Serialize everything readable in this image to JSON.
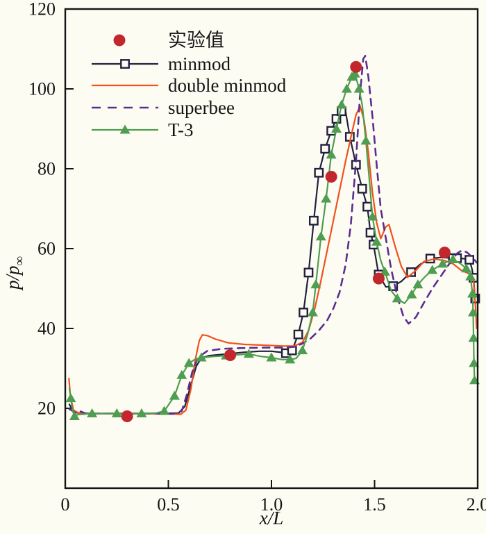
{
  "chart_data": {
    "type": "line",
    "title": "",
    "xlabel": "x/L",
    "ylabel": "p/p∞",
    "xlim": [
      0,
      2
    ],
    "ylim": [
      0,
      120
    ],
    "xticks": [
      {
        "v": 0,
        "label": "0"
      },
      {
        "v": 0.5,
        "label": "0.5"
      },
      {
        "v": 1.0,
        "label": "1.0"
      },
      {
        "v": 1.5,
        "label": "1.5"
      },
      {
        "v": 2.0,
        "label": "2.0"
      }
    ],
    "yticks": [
      {
        "v": 20,
        "label": "20"
      },
      {
        "v": 40,
        "label": "40"
      },
      {
        "v": 60,
        "label": "60"
      },
      {
        "v": 80,
        "label": "80"
      },
      {
        "v": 100,
        "label": "100"
      },
      {
        "v": 120,
        "label": "120"
      }
    ],
    "grid": false,
    "legend_position": "upper-left",
    "frame_color": "#141414",
    "background": "#fdfcf3",
    "series": [
      {
        "name": "实验值",
        "kind": "scatter",
        "marker": "circle",
        "color": "#c1272d",
        "points": [
          [
            0.3,
            18
          ],
          [
            0.8,
            33.3
          ],
          [
            1.29,
            78
          ],
          [
            1.41,
            105.5
          ],
          [
            1.52,
            52.5
          ],
          [
            1.84,
            59
          ]
        ]
      },
      {
        "name": "minmod",
        "kind": "line",
        "marker": "open-square",
        "color": "#21213f",
        "width": 2.2,
        "points": [
          [
            0.02,
            21
          ],
          [
            0.04,
            19
          ],
          [
            0.07,
            18.8
          ],
          [
            0.15,
            18.7
          ],
          [
            0.3,
            18.7
          ],
          [
            0.45,
            18.7
          ],
          [
            0.55,
            18.8
          ],
          [
            0.58,
            20.5
          ],
          [
            0.61,
            26
          ],
          [
            0.635,
            30.5
          ],
          [
            0.66,
            32.6
          ],
          [
            0.7,
            33.2
          ],
          [
            0.78,
            33.6
          ],
          [
            0.86,
            34.0
          ],
          [
            0.94,
            34.3
          ],
          [
            1.0,
            34.3
          ],
          [
            1.05,
            34.0
          ],
          [
            1.07,
            33.8
          ],
          [
            1.1,
            34.5
          ],
          [
            1.13,
            38.5
          ],
          [
            1.155,
            44
          ],
          [
            1.18,
            54
          ],
          [
            1.205,
            67
          ],
          [
            1.23,
            79
          ],
          [
            1.26,
            85
          ],
          [
            1.29,
            89.5
          ],
          [
            1.315,
            92.5
          ],
          [
            1.34,
            94.4
          ],
          [
            1.36,
            94.2
          ],
          [
            1.38,
            88
          ],
          [
            1.41,
            81
          ],
          [
            1.44,
            75
          ],
          [
            1.465,
            70.5
          ],
          [
            1.48,
            64
          ],
          [
            1.495,
            61
          ],
          [
            1.52,
            53.5
          ],
          [
            1.555,
            50.4
          ],
          [
            1.59,
            50.6
          ],
          [
            1.63,
            51.8
          ],
          [
            1.677,
            54.1
          ],
          [
            1.72,
            56
          ],
          [
            1.77,
            57.5
          ],
          [
            1.82,
            57.8
          ],
          [
            1.88,
            57.6
          ],
          [
            1.93,
            57.5
          ],
          [
            1.96,
            57.2
          ],
          [
            1.972,
            55
          ],
          [
            1.98,
            52.7
          ],
          [
            1.985,
            49
          ],
          [
            1.988,
            47.5
          ]
        ],
        "marker_points": [
          [
            1.07,
            33.8
          ],
          [
            1.1,
            34.5
          ],
          [
            1.13,
            38.5
          ],
          [
            1.155,
            44
          ],
          [
            1.18,
            54
          ],
          [
            1.205,
            67
          ],
          [
            1.23,
            79
          ],
          [
            1.26,
            85
          ],
          [
            1.29,
            89.5
          ],
          [
            1.315,
            92.5
          ],
          [
            1.34,
            94.4
          ],
          [
            1.38,
            88
          ],
          [
            1.41,
            81
          ],
          [
            1.44,
            75
          ],
          [
            1.465,
            70.5
          ],
          [
            1.48,
            64
          ],
          [
            1.495,
            61
          ],
          [
            1.52,
            53.5
          ],
          [
            1.59,
            50.6
          ],
          [
            1.677,
            54.1
          ],
          [
            1.77,
            57.5
          ],
          [
            1.88,
            57.6
          ],
          [
            1.9,
            57.6
          ],
          [
            1.96,
            57.2
          ],
          [
            1.98,
            52.7
          ],
          [
            1.988,
            47.5
          ]
        ]
      },
      {
        "name": "double minmod",
        "kind": "line",
        "marker": "none",
        "color": "#f2501c",
        "width": 2.2,
        "points": [
          [
            0.018,
            27.5
          ],
          [
            0.025,
            23
          ],
          [
            0.04,
            19.5
          ],
          [
            0.07,
            18.7
          ],
          [
            0.2,
            18.7
          ],
          [
            0.35,
            18.7
          ],
          [
            0.5,
            18.6
          ],
          [
            0.56,
            18.5
          ],
          [
            0.585,
            19.5
          ],
          [
            0.61,
            25
          ],
          [
            0.63,
            32
          ],
          [
            0.65,
            37
          ],
          [
            0.665,
            38.4
          ],
          [
            0.69,
            38.2
          ],
          [
            0.73,
            37.3
          ],
          [
            0.79,
            36.4
          ],
          [
            0.87,
            36.0
          ],
          [
            0.97,
            35.8
          ],
          [
            1.06,
            35.6
          ],
          [
            1.11,
            35.6
          ],
          [
            1.15,
            36.5
          ],
          [
            1.18,
            39.5
          ],
          [
            1.21,
            45
          ],
          [
            1.24,
            52
          ],
          [
            1.27,
            59.5
          ],
          [
            1.3,
            67
          ],
          [
            1.33,
            74.5
          ],
          [
            1.36,
            82
          ],
          [
            1.39,
            89
          ],
          [
            1.41,
            93.5
          ],
          [
            1.43,
            95.7
          ],
          [
            1.45,
            92
          ],
          [
            1.47,
            84
          ],
          [
            1.49,
            74
          ],
          [
            1.51,
            66.5
          ],
          [
            1.53,
            62.5
          ],
          [
            1.555,
            65.5
          ],
          [
            1.57,
            66
          ],
          [
            1.6,
            60.5
          ],
          [
            1.63,
            55.5
          ],
          [
            1.66,
            52.8
          ],
          [
            1.7,
            54.5
          ],
          [
            1.74,
            56.8
          ],
          [
            1.79,
            57.4
          ],
          [
            1.84,
            57.0
          ],
          [
            1.88,
            56.2
          ],
          [
            1.92,
            54.6
          ],
          [
            1.95,
            53.9
          ],
          [
            1.97,
            53.5
          ],
          [
            1.98,
            52
          ],
          [
            1.99,
            45
          ],
          [
            1.995,
            40
          ]
        ]
      },
      {
        "name": "superbee",
        "kind": "line",
        "marker": "none",
        "color": "#5c2d91",
        "width": 2.6,
        "dash": [
          10,
          8
        ],
        "points": [
          [
            0.02,
            19.8
          ],
          [
            0.05,
            18.9
          ],
          [
            0.07,
            19.3
          ],
          [
            0.1,
            18.7
          ],
          [
            0.25,
            18.7
          ],
          [
            0.4,
            18.7
          ],
          [
            0.52,
            18.6
          ],
          [
            0.565,
            19.3
          ],
          [
            0.59,
            23.5
          ],
          [
            0.615,
            29
          ],
          [
            0.645,
            32.8
          ],
          [
            0.69,
            34.4
          ],
          [
            0.76,
            34.9
          ],
          [
            0.86,
            35.1
          ],
          [
            0.96,
            35.2
          ],
          [
            1.06,
            35.2
          ],
          [
            1.11,
            35.4
          ],
          [
            1.15,
            36.2
          ],
          [
            1.19,
            37.5
          ],
          [
            1.23,
            39.5
          ],
          [
            1.27,
            42
          ],
          [
            1.3,
            45
          ],
          [
            1.33,
            49
          ],
          [
            1.36,
            56
          ],
          [
            1.385,
            66
          ],
          [
            1.41,
            82
          ],
          [
            1.43,
            99
          ],
          [
            1.445,
            107.5
          ],
          [
            1.455,
            108.3
          ],
          [
            1.47,
            103
          ],
          [
            1.49,
            93
          ],
          [
            1.51,
            81
          ],
          [
            1.53,
            70
          ],
          [
            1.555,
            62.5
          ],
          [
            1.58,
            55
          ],
          [
            1.61,
            48
          ],
          [
            1.64,
            43
          ],
          [
            1.665,
            41.2
          ],
          [
            1.7,
            42.8
          ],
          [
            1.74,
            46.5
          ],
          [
            1.78,
            50
          ],
          [
            1.82,
            53
          ],
          [
            1.86,
            56
          ],
          [
            1.9,
            58.8
          ],
          [
            1.925,
            59.6
          ],
          [
            1.95,
            59
          ],
          [
            1.98,
            57.5
          ],
          [
            1.995,
            56.5
          ]
        ]
      },
      {
        "name": "T-3",
        "kind": "line",
        "marker": "triangle",
        "color": "#4f9d50",
        "width": 2.2,
        "points": [
          [
            0.02,
            25
          ],
          [
            0.027,
            22.5
          ],
          [
            0.035,
            19.5
          ],
          [
            0.045,
            18.0
          ],
          [
            0.06,
            18.4
          ],
          [
            0.13,
            18.7
          ],
          [
            0.25,
            18.7
          ],
          [
            0.37,
            18.7
          ],
          [
            0.44,
            18.8
          ],
          [
            0.48,
            19.3
          ],
          [
            0.53,
            23.1
          ],
          [
            0.565,
            28.3
          ],
          [
            0.6,
            31.3
          ],
          [
            0.63,
            32.3
          ],
          [
            0.66,
            32.7
          ],
          [
            0.72,
            33.0
          ],
          [
            0.78,
            33.2
          ],
          [
            0.83,
            33.4
          ],
          [
            0.89,
            33.6
          ],
          [
            0.95,
            33.0
          ],
          [
            1.0,
            32.7
          ],
          [
            1.05,
            32.2
          ],
          [
            1.09,
            32.2
          ],
          [
            1.12,
            32.5
          ],
          [
            1.15,
            34.5
          ],
          [
            1.175,
            38.5
          ],
          [
            1.2,
            44
          ],
          [
            1.215,
            51
          ],
          [
            1.24,
            63
          ],
          [
            1.265,
            72.5
          ],
          [
            1.29,
            83.5
          ],
          [
            1.315,
            90
          ],
          [
            1.34,
            96
          ],
          [
            1.365,
            100
          ],
          [
            1.39,
            103
          ],
          [
            1.405,
            103.8
          ],
          [
            1.425,
            100
          ],
          [
            1.44,
            96
          ],
          [
            1.458,
            87
          ],
          [
            1.475,
            77
          ],
          [
            1.49,
            68
          ],
          [
            1.51,
            61.7
          ],
          [
            1.53,
            57
          ],
          [
            1.55,
            54.2
          ],
          [
            1.58,
            49.5
          ],
          [
            1.61,
            47.5
          ],
          [
            1.645,
            46.3
          ],
          [
            1.68,
            48.5
          ],
          [
            1.71,
            51
          ],
          [
            1.745,
            53
          ],
          [
            1.78,
            54.6
          ],
          [
            1.83,
            56.2
          ],
          [
            1.88,
            57.3
          ],
          [
            1.915,
            56.3
          ],
          [
            1.945,
            55
          ],
          [
            1.965,
            53
          ],
          [
            1.975,
            48.7
          ],
          [
            1.978,
            44
          ],
          [
            1.98,
            37.6
          ],
          [
            1.982,
            31.3
          ],
          [
            1.985,
            27
          ]
        ],
        "marker_points": [
          [
            0.027,
            22.5
          ],
          [
            0.045,
            18.0
          ],
          [
            0.13,
            18.7
          ],
          [
            0.25,
            18.7
          ],
          [
            0.37,
            18.7
          ],
          [
            0.48,
            19.3
          ],
          [
            0.53,
            23.1
          ],
          [
            0.565,
            28.3
          ],
          [
            0.6,
            31.3
          ],
          [
            0.66,
            32.7
          ],
          [
            0.78,
            33.2
          ],
          [
            0.89,
            33.6
          ],
          [
            1.0,
            32.7
          ],
          [
            1.09,
            32.2
          ],
          [
            1.15,
            34.5
          ],
          [
            1.2,
            44
          ],
          [
            1.215,
            51
          ],
          [
            1.24,
            63
          ],
          [
            1.265,
            72.5
          ],
          [
            1.29,
            83.5
          ],
          [
            1.315,
            90
          ],
          [
            1.34,
            96
          ],
          [
            1.365,
            100
          ],
          [
            1.39,
            103
          ],
          [
            1.405,
            103.8
          ],
          [
            1.425,
            100
          ],
          [
            1.458,
            87
          ],
          [
            1.49,
            68
          ],
          [
            1.51,
            61.7
          ],
          [
            1.55,
            54.2
          ],
          [
            1.61,
            47.5
          ],
          [
            1.68,
            48.5
          ],
          [
            1.71,
            51
          ],
          [
            1.78,
            54.6
          ],
          [
            1.83,
            56.2
          ],
          [
            1.88,
            57.3
          ],
          [
            1.945,
            55
          ],
          [
            1.965,
            53
          ],
          [
            1.975,
            48.7
          ],
          [
            1.978,
            44
          ],
          [
            1.98,
            37.6
          ],
          [
            1.982,
            31.3
          ],
          [
            1.985,
            27
          ]
        ]
      }
    ]
  }
}
